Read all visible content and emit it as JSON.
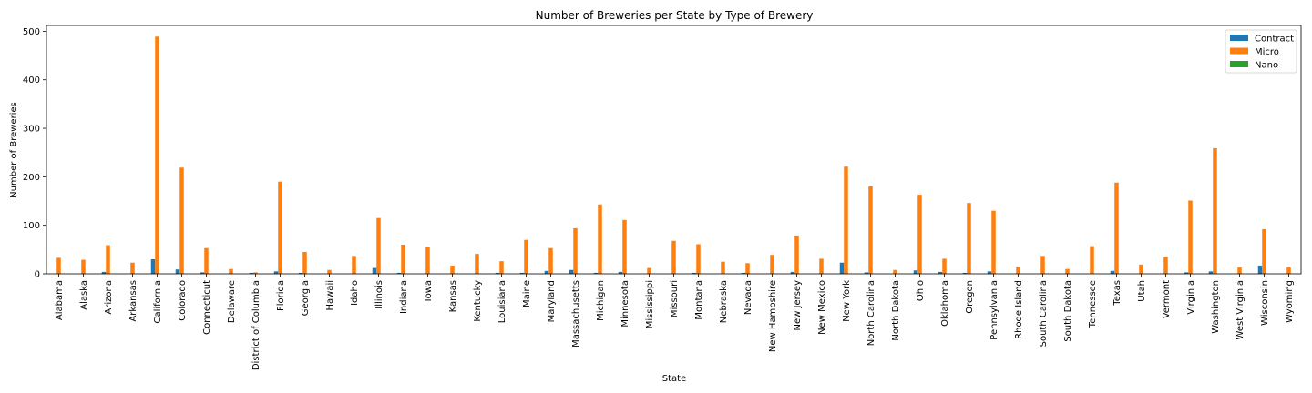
{
  "chart_data": {
    "type": "bar",
    "title": "Number of Breweries per State by Type of Brewery",
    "xlabel": "State",
    "ylabel": "Number of Breweries",
    "ylim": [
      0,
      512
    ],
    "yticks": [
      0,
      100,
      200,
      300,
      400,
      500
    ],
    "legend_position": "top-right",
    "grid": false,
    "categories": [
      "Alabama",
      "Alaska",
      "Arizona",
      "Arkansas",
      "California",
      "Colorado",
      "Connecticut",
      "Delaware",
      "District of Columbia",
      "Florida",
      "Georgia",
      "Hawaii",
      "Idaho",
      "Illinois",
      "Indiana",
      "Iowa",
      "Kansas",
      "Kentucky",
      "Louisiana",
      "Maine",
      "Maryland",
      "Massachusetts",
      "Michigan",
      "Minnesota",
      "Mississippi",
      "Missouri",
      "Montana",
      "Nebraska",
      "Nevada",
      "New Hampshire",
      "New Jersey",
      "New Mexico",
      "New York",
      "North Carolina",
      "North Dakota",
      "Ohio",
      "Oklahoma",
      "Oregon",
      "Pennsylvania",
      "Rhode Island",
      "South Carolina",
      "South Dakota",
      "Tennessee",
      "Texas",
      "Utah",
      "Vermont",
      "Virginia",
      "Washington",
      "West Virginia",
      "Wisconsin",
      "Wyoming"
    ],
    "series": [
      {
        "name": "Contract",
        "color": "#1f77b4",
        "values": [
          0,
          0,
          4,
          0,
          30,
          9,
          3,
          0,
          2,
          5,
          2,
          0,
          0,
          12,
          2,
          0,
          0,
          0,
          2,
          2,
          6,
          8,
          2,
          4,
          0,
          0,
          2,
          0,
          2,
          0,
          4,
          0,
          23,
          3,
          0,
          7,
          4,
          2,
          5,
          0,
          0,
          0,
          0,
          6,
          0,
          0,
          3,
          5,
          0,
          17,
          0
        ]
      },
      {
        "name": "Micro",
        "color": "#ff7f0e",
        "values": [
          33,
          29,
          59,
          23,
          489,
          219,
          53,
          10,
          3,
          190,
          45,
          8,
          37,
          115,
          60,
          55,
          17,
          41,
          26,
          70,
          53,
          94,
          143,
          111,
          12,
          68,
          61,
          25,
          22,
          39,
          79,
          31,
          221,
          180,
          8,
          163,
          31,
          146,
          130,
          15,
          37,
          10,
          57,
          188,
          19,
          35,
          151,
          259,
          13,
          92,
          13
        ]
      },
      {
        "name": "Nano",
        "color": "#2ca02c",
        "values": [
          0,
          0,
          0,
          0,
          0,
          0,
          0,
          0,
          0,
          0,
          0,
          0,
          0,
          0,
          0,
          0,
          0,
          0,
          0,
          0,
          0,
          0,
          0,
          0,
          0,
          0,
          0,
          0,
          0,
          0,
          0,
          0,
          0,
          0,
          0,
          0,
          0,
          0,
          0,
          0,
          0,
          0,
          0,
          0,
          0,
          0,
          0,
          0,
          0,
          0,
          0
        ]
      }
    ]
  }
}
